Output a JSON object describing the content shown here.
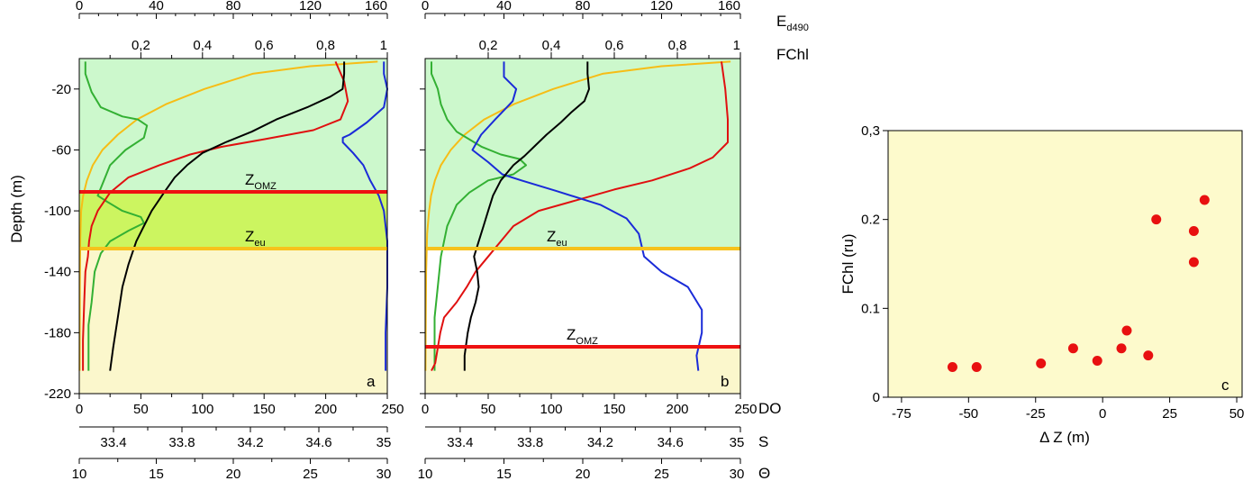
{
  "colors": {
    "euphotic_fill": "#ccf8cc",
    "omz_band_fill": "#ccf560",
    "deep_fill": "#fbf7cc",
    "plot_c_fill": "#fdfacc",
    "z_omz_line": "#ee1111",
    "z_eu_line": "#f6c21c",
    "ed490": "#f6bd16",
    "fchl": "#33b033",
    "do": "#e01010",
    "salinity": "#1a2bd8",
    "theta": "#000000",
    "scatter_point": "#e81010"
  },
  "panels_ab": {
    "top_axis_ed": {
      "ticks": [
        "0",
        "40",
        "80",
        "120",
        "160"
      ],
      "label_main": "E",
      "label_sub": "d490"
    },
    "top_axis_fchl": {
      "ticks": [
        "0,2",
        "0,4",
        "0,6",
        "0,8",
        "1"
      ],
      "label": "FChl"
    },
    "y_axis": {
      "label": "Depth (m)",
      "ticks": [
        "-20",
        "-60",
        "-100",
        "-140",
        "-180",
        "-220"
      ]
    },
    "bottom_axis_do": {
      "ticks": [
        "0",
        "50",
        "100",
        "150",
        "200",
        "250"
      ],
      "label": "DO"
    },
    "bottom_axis_s": {
      "ticks": [
        "33.4",
        "33.8",
        "34.2",
        "34.6",
        "35"
      ],
      "label": "S"
    },
    "bottom_axis_theta": {
      "ticks": [
        "10",
        "15",
        "20",
        "25",
        "30"
      ],
      "label": "Θ"
    }
  },
  "panel_a": {
    "letter": "a",
    "z_omz": {
      "main": "Z",
      "sub": "OMZ",
      "depth": -88
    },
    "z_eu": {
      "main": "Z",
      "sub": "eu",
      "depth": -125
    }
  },
  "panel_b": {
    "letter": "b",
    "z_omz": {
      "main": "Z",
      "sub": "OMZ",
      "depth": -189
    },
    "z_eu": {
      "main": "Z",
      "sub": "eu",
      "depth": -125
    }
  },
  "chart_data": [
    {
      "type": "line",
      "panel": "a",
      "ylabel": "Depth (m)",
      "ylim": [
        -220,
        0
      ],
      "series": [
        {
          "name": "Ed490",
          "x": [
            155,
            120,
            90,
            65,
            45,
            30,
            20,
            12,
            7,
            4,
            2,
            1,
            0.5,
            0.3,
            0.2
          ],
          "y": [
            -2,
            -5,
            -10,
            -20,
            -30,
            -40,
            -50,
            -60,
            -70,
            -80,
            -90,
            -100,
            -120,
            -150,
            -205
          ]
        },
        {
          "name": "FChl",
          "x": [
            0.02,
            0.02,
            0.04,
            0.07,
            0.14,
            0.19,
            0.22,
            0.21,
            0.15,
            0.1,
            0.08,
            0.06,
            0.09,
            0.14,
            0.2,
            0.21,
            0.16,
            0.1,
            0.07,
            0.05,
            0.04,
            0.03,
            0.03,
            0.03
          ],
          "y": [
            -2,
            -10,
            -22,
            -32,
            -38,
            -40,
            -44,
            -52,
            -60,
            -70,
            -80,
            -90,
            -94,
            -100,
            -104,
            -108,
            -113,
            -120,
            -128,
            -140,
            -160,
            -175,
            -190,
            -205
          ]
        },
        {
          "name": "DO",
          "x": [
            208,
            215,
            218,
            212,
            190,
            150,
            115,
            90,
            65,
            40,
            25,
            15,
            10,
            8,
            7,
            5,
            4,
            3,
            3,
            3
          ],
          "y": [
            -2,
            -15,
            -28,
            -40,
            -47,
            -53,
            -58,
            -63,
            -70,
            -78,
            -88,
            -100,
            -110,
            -120,
            -130,
            -140,
            -160,
            -185,
            -200,
            -205
          ]
        },
        {
          "name": "S",
          "x": [
            34.98,
            34.98,
            35.0,
            34.98,
            34.88,
            34.78,
            34.74,
            34.74,
            34.8,
            34.86,
            34.9,
            34.95,
            34.98,
            34.99,
            35.0,
            35.0,
            35.0,
            34.99,
            34.99
          ],
          "y": [
            -2,
            -10,
            -20,
            -32,
            -42,
            -50,
            -52,
            -55,
            -62,
            -70,
            -80,
            -90,
            -100,
            -110,
            -120,
            -130,
            -150,
            -180,
            -205
          ]
        },
        {
          "name": "Θ",
          "x": [
            27.2,
            27.2,
            27.1,
            26.3,
            24.8,
            22.8,
            21.2,
            19.5,
            18.0,
            17.0,
            16.2,
            15.5,
            14.7,
            14.2,
            13.7,
            13.2,
            12.8,
            12.5,
            12.2,
            12.0
          ],
          "y": [
            -2,
            -10,
            -20,
            -25,
            -32,
            -40,
            -48,
            -55,
            -62,
            -70,
            -78,
            -88,
            -100,
            -110,
            -120,
            -135,
            -150,
            -170,
            -190,
            -205
          ]
        }
      ]
    },
    {
      "type": "line",
      "panel": "b",
      "ylabel": "Depth (m)",
      "ylim": [
        -220,
        0
      ],
      "series": [
        {
          "name": "Ed490",
          "x": [
            155,
            120,
            90,
            65,
            45,
            30,
            20,
            13,
            8,
            5,
            3,
            2,
            1,
            0.5,
            0.3,
            0.2
          ],
          "y": [
            -2,
            -5,
            -10,
            -20,
            -30,
            -40,
            -50,
            -60,
            -70,
            -80,
            -90,
            -100,
            -115,
            -140,
            -170,
            -205
          ]
        },
        {
          "name": "FChl",
          "x": [
            0.02,
            0.02,
            0.04,
            0.05,
            0.07,
            0.1,
            0.18,
            0.24,
            0.3,
            0.32,
            0.28,
            0.2,
            0.14,
            0.1,
            0.07,
            0.05,
            0.04,
            0.03,
            0.03,
            0.03
          ],
          "y": [
            -2,
            -10,
            -20,
            -30,
            -40,
            -48,
            -58,
            -63,
            -66,
            -70,
            -76,
            -80,
            -88,
            -96,
            -110,
            -130,
            -150,
            -170,
            -190,
            -205
          ]
        },
        {
          "name": "DO",
          "x": [
            235,
            238,
            240,
            240,
            228,
            210,
            180,
            150,
            120,
            90,
            70,
            60,
            50,
            40,
            33,
            25,
            15,
            12,
            10,
            8,
            5
          ],
          "y": [
            -2,
            -20,
            -40,
            -55,
            -65,
            -72,
            -80,
            -86,
            -93,
            -100,
            -110,
            -120,
            -130,
            -140,
            -150,
            -160,
            -170,
            -180,
            -190,
            -200,
            -205
          ]
        },
        {
          "name": "S",
          "x": [
            33.65,
            33.65,
            33.72,
            33.7,
            33.6,
            33.52,
            33.47,
            33.56,
            33.64,
            33.75,
            33.95,
            34.2,
            34.35,
            34.42,
            34.45,
            34.55,
            34.7,
            34.78,
            34.78,
            34.75,
            34.76
          ],
          "y": [
            -2,
            -12,
            -20,
            -28,
            -40,
            -50,
            -60,
            -68,
            -76,
            -80,
            -87,
            -96,
            -105,
            -115,
            -130,
            -140,
            -150,
            -165,
            -180,
            -195,
            -205
          ]
        },
        {
          "name": "Θ",
          "x": [
            20.3,
            20.3,
            20.4,
            20.1,
            19.3,
            18.6,
            17.7,
            17.0,
            16.3,
            15.6,
            14.8,
            14.3,
            14.0,
            13.7,
            13.4,
            13.1,
            13.3,
            13.4,
            13.2,
            12.9,
            12.7,
            12.5,
            12.5
          ],
          "y": [
            -2,
            -10,
            -20,
            -28,
            -35,
            -42,
            -50,
            -57,
            -64,
            -70,
            -80,
            -90,
            -100,
            -110,
            -120,
            -130,
            -140,
            -150,
            -160,
            -170,
            -180,
            -195,
            -205
          ]
        }
      ]
    },
    {
      "type": "scatter",
      "panel": "c",
      "xlabel": "Δ Z (m)",
      "ylabel": "FChl (ru)",
      "xlim": [
        -80,
        52
      ],
      "ylim": [
        0,
        0.3
      ],
      "x_ticks": [
        "-75",
        "-50",
        "-25",
        "0",
        "25",
        "50"
      ],
      "y_ticks": [
        "0",
        "0.1",
        "0.2",
        "0,3"
      ],
      "letter": "c",
      "points": [
        {
          "x": -56,
          "y": 0.034
        },
        {
          "x": -47,
          "y": 0.034
        },
        {
          "x": -23,
          "y": 0.038
        },
        {
          "x": -11,
          "y": 0.055
        },
        {
          "x": -2,
          "y": 0.041
        },
        {
          "x": 7,
          "y": 0.055
        },
        {
          "x": 9,
          "y": 0.075
        },
        {
          "x": 17,
          "y": 0.047
        },
        {
          "x": 20,
          "y": 0.2
        },
        {
          "x": 34,
          "y": 0.187
        },
        {
          "x": 34,
          "y": 0.152
        },
        {
          "x": 38,
          "y": 0.222
        }
      ]
    }
  ]
}
